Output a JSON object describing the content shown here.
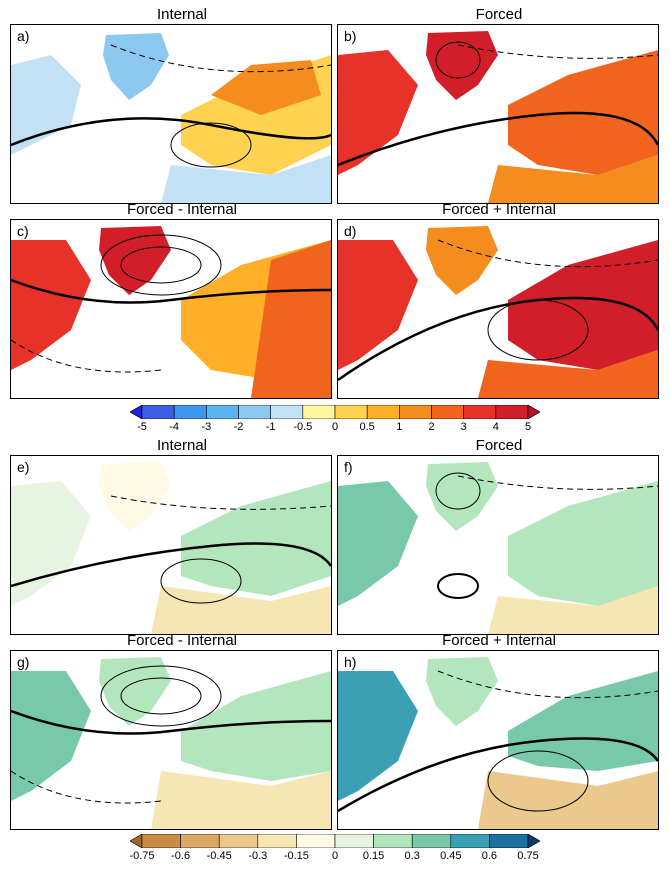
{
  "top": {
    "panels": [
      {
        "tag": "a)",
        "title": "Internal"
      },
      {
        "tag": "b)",
        "title": "Forced"
      },
      {
        "tag": "c)",
        "title": "Forced - Internal"
      },
      {
        "tag": "d)",
        "title": "Forced + Internal"
      }
    ],
    "colorbar": {
      "ticks": [
        "-5",
        "-4",
        "-3",
        "-2",
        "-1",
        "-0.5",
        "0",
        "0.5",
        "1",
        "2",
        "3",
        "4",
        "5"
      ],
      "colors": [
        "#1e1ee6",
        "#3c5fe6",
        "#3c96f0",
        "#5ab4f0",
        "#8cc8f0",
        "#c3e1f5",
        "#fff59b",
        "#ffd250",
        "#ffaf28",
        "#f58c1e",
        "#f0641e",
        "#e63228",
        "#d21e28",
        "#b41423"
      ]
    }
  },
  "bottom": {
    "panels": [
      {
        "tag": "e)",
        "title": "Internal"
      },
      {
        "tag": "f)",
        "title": "Forced"
      },
      {
        "tag": "g)",
        "title": "Forced - Internal"
      },
      {
        "tag": "h)",
        "title": "Forced + Internal"
      }
    ],
    "colorbar": {
      "ticks": [
        "-0.75",
        "-0.6",
        "-0.45",
        "-0.3",
        "-0.15",
        "0",
        "0.15",
        "0.3",
        "0.45",
        "0.6",
        "0.75"
      ],
      "colors": [
        "#a0642d",
        "#c88c46",
        "#dcaa64",
        "#ebc88c",
        "#f5e6b4",
        "#fffae6",
        "#e6f5e1",
        "#b4e6be",
        "#78c8aa",
        "#3ca0b4",
        "#1e6ea0",
        "#0a3c6e"
      ]
    }
  }
}
